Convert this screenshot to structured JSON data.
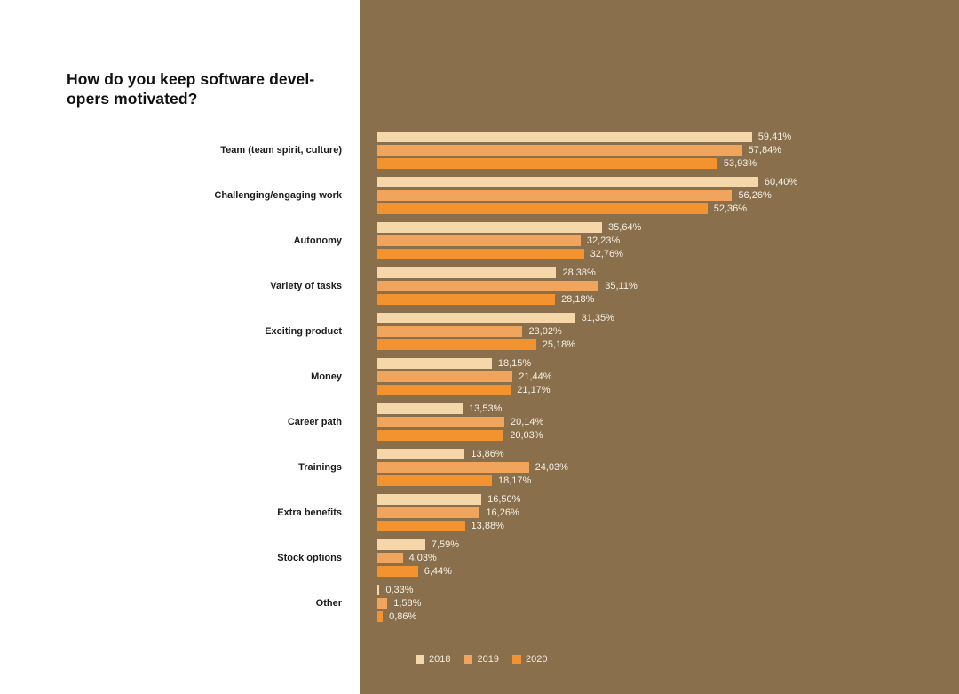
{
  "title": {
    "line1": "How do you keep software devel-",
    "line2": "opers motivated?"
  },
  "colors": {
    "background_panel": "#8a6f4d",
    "bar_2018": "#f6d7a9",
    "bar_2019": "#f1a55c",
    "bar_2020": "#f3932f",
    "value_text": "#f7f2e6",
    "legend_text": "#f2ecdc",
    "title_text": "#111111",
    "category_text": "#1c1c1c"
  },
  "chart_data": {
    "type": "bar",
    "orientation": "horizontal",
    "title": "How do you keep software developers motivated?",
    "xlabel": "",
    "ylabel": "",
    "xlim": [
      0,
      65
    ],
    "grid": false,
    "legend_position": "bottom",
    "value_label_format": "percent with comma decimal separator",
    "categories": [
      "Team (team spirit, culture)",
      "Challenging/engaging work",
      "Autonomy",
      "Variety of tasks",
      "Exciting product",
      "Money",
      "Career path",
      "Trainings",
      "Extra benefits",
      "Stock options",
      "Other"
    ],
    "series": [
      {
        "name": "2018",
        "values": [
          59.41,
          60.4,
          35.64,
          28.38,
          31.35,
          18.15,
          13.53,
          13.86,
          16.5,
          7.59,
          0.33
        ],
        "labels": [
          "59,41%",
          "60,40%",
          "35,64%",
          "28,38%",
          "31,35%",
          "18,15%",
          "13,53%",
          "13,86%",
          "16,50%",
          "7,59%",
          "0,33%"
        ]
      },
      {
        "name": "2019",
        "values": [
          57.84,
          56.26,
          32.23,
          35.11,
          23.02,
          21.44,
          20.14,
          24.03,
          16.26,
          4.03,
          1.58
        ],
        "labels": [
          "57,84%",
          "56,26%",
          "32,23%",
          "35,11%",
          "23,02%",
          "21,44%",
          "20,14%",
          "24,03%",
          "16,26%",
          "4,03%",
          "1,58%"
        ]
      },
      {
        "name": "2020",
        "values": [
          53.93,
          52.36,
          32.76,
          28.18,
          25.18,
          21.17,
          20.03,
          18.17,
          13.88,
          6.44,
          0.86
        ],
        "labels": [
          "53,93%",
          "52,36%",
          "32,76%",
          "28,18%",
          "25,18%",
          "21,17%",
          "20,03%",
          "18,17%",
          "13,88%",
          "6,44%",
          "0,86%"
        ]
      }
    ]
  },
  "legend": {
    "items": [
      {
        "label": "2018"
      },
      {
        "label": "2019"
      },
      {
        "label": "2020"
      }
    ]
  }
}
